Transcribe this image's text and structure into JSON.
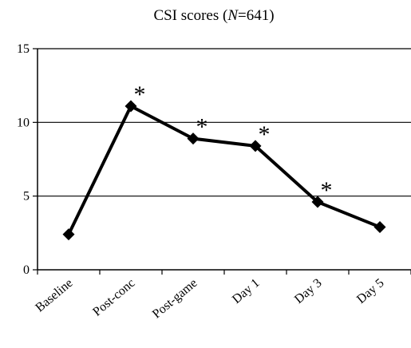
{
  "chart_data": {
    "type": "line",
    "title_main": "CSI scores (",
    "title_italic": "N",
    "title_tail": "=641)",
    "categories": [
      "Baseline",
      "Post-conc",
      "Post-game",
      "Day 1",
      "Day 3",
      "Day 5"
    ],
    "series": [
      {
        "values": [
          2.4,
          11.1,
          8.9,
          8.4,
          4.6,
          2.9
        ]
      }
    ],
    "annotations": [
      "",
      "*",
      "*",
      "*",
      "*",
      ""
    ],
    "ylim": [
      0,
      15
    ],
    "yticks": [
      0,
      5,
      10,
      15
    ],
    "xlabel": "",
    "ylabel": "",
    "grid": true,
    "legend": "none",
    "colors": {
      "line": "#000000",
      "marker": "#000000",
      "grid": "#000000",
      "axis": "#000000"
    }
  }
}
